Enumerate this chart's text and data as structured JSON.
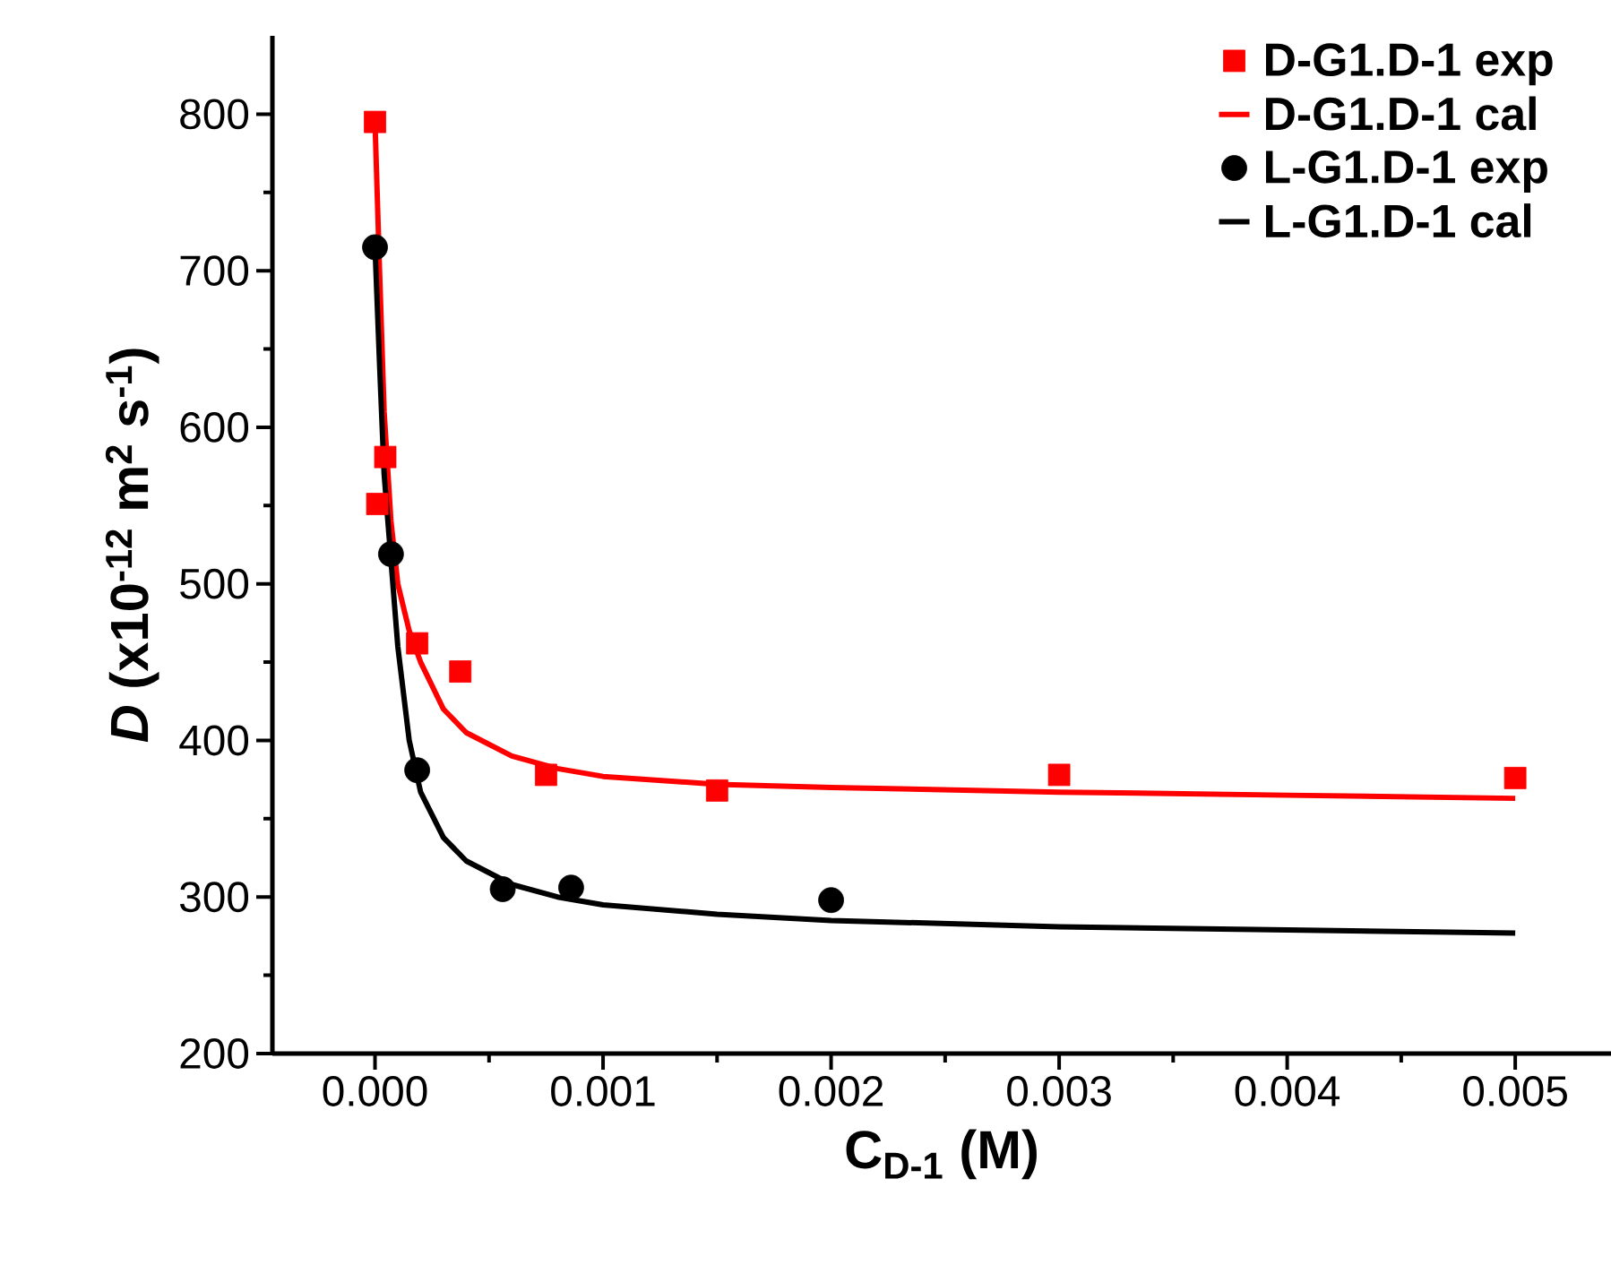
{
  "chart_data": {
    "type": "scatter",
    "xlabel": "C$_{D-1}$ (M)",
    "ylabel": "*D* (x10$^{-12}$ m$^{2}$ s$^{-1}$)",
    "xlim": [
      -0.00045,
      0.00542
    ],
    "ylim": [
      200,
      850
    ],
    "xticks": [
      {
        "value": 0,
        "label": "0.000"
      },
      {
        "value": 0.001,
        "label": "0.001"
      },
      {
        "value": 0.002,
        "label": "0.002"
      },
      {
        "value": 0.003,
        "label": "0.003"
      },
      {
        "value": 0.004,
        "label": "0.004"
      },
      {
        "value": 0.005,
        "label": "0.005"
      }
    ],
    "yticks": [
      200,
      300,
      400,
      500,
      600,
      700,
      800
    ],
    "legend": "top right",
    "series": [
      {
        "name": "D-G1.D-1 exp",
        "marker": "square",
        "color": "#ff0000",
        "x": [
          0,
          1e-05,
          4.5e-05,
          0.000185,
          0.000374,
          0.00075,
          0.0015,
          0.003,
          0.005
        ],
        "values": [
          795,
          551,
          581,
          462,
          444,
          378,
          368,
          378,
          376
        ]
      },
      {
        "name": "D-G1.D-1 cal",
        "type": "line",
        "color": "#ff0000",
        "x": [
          0,
          2e-05,
          4e-05,
          7e-05,
          0.0001,
          0.00015,
          0.0002,
          0.0003,
          0.0004,
          0.0006,
          0.0008,
          0.001,
          0.0015,
          0.002,
          0.003,
          0.004,
          0.005
        ],
        "values": [
          795,
          700,
          610,
          540,
          500,
          470,
          450,
          420,
          405,
          390,
          382,
          377,
          372,
          370,
          367,
          365,
          363
        ]
      },
      {
        "name": "L-G1.D-1 exp",
        "marker": "circle",
        "color": "#000000",
        "x": [
          0,
          7e-05,
          0.000185,
          0.00056,
          0.00086,
          0.002
        ],
        "values": [
          715,
          519,
          381,
          305,
          306,
          298
        ]
      },
      {
        "name": "L-G1.D-1 cal",
        "type": "line",
        "color": "#000000",
        "x": [
          0,
          2e-05,
          4e-05,
          7e-05,
          0.0001,
          0.00015,
          0.0002,
          0.0003,
          0.0004,
          0.0006,
          0.0008,
          0.001,
          0.0015,
          0.002,
          0.003,
          0.004,
          0.005
        ],
        "values": [
          715,
          640,
          570,
          515,
          460,
          400,
          367,
          338,
          323,
          308,
          300,
          295,
          289,
          285,
          281,
          279,
          277
        ]
      }
    ]
  }
}
